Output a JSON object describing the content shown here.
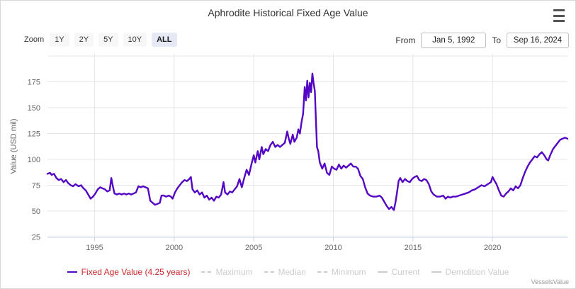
{
  "header": {
    "title": "Aphrodite Historical Fixed Age Value"
  },
  "controls": {
    "zoom_label": "Zoom",
    "zoom_options": [
      {
        "label": "1Y",
        "active": false
      },
      {
        "label": "2Y",
        "active": false
      },
      {
        "label": "5Y",
        "active": false
      },
      {
        "label": "10Y",
        "active": false
      },
      {
        "label": "ALL",
        "active": true
      }
    ],
    "from_label": "From",
    "from_value": "Jan 5, 1992",
    "to_label": "To",
    "to_value": "Sep 16, 2024"
  },
  "colors": {
    "line": "#5306c4",
    "grid": "#e6e6e6",
    "axis_line": "#ccd6eb",
    "tick_label": "#666666",
    "legend_active_text": "#cc2929",
    "legend_disabled": "#cccccc"
  },
  "chart_data": {
    "type": "line",
    "title": "Aphrodite Historical Fixed Age Value",
    "xlabel": "",
    "ylabel": "Value (USD mil)",
    "xlim": [
      1992.04,
      2024.71
    ],
    "ylim": [
      25,
      200
    ],
    "xticks": [
      1995,
      2000,
      2005,
      2010,
      2015,
      2020
    ],
    "yticks": [
      25,
      50,
      75,
      100,
      125,
      150,
      175
    ],
    "grid": true,
    "legend_position": "bottom",
    "series": [
      {
        "name": "Fixed Age Value (4.25 years)",
        "color": "#5306c4",
        "points": [
          [
            1992.04,
            86
          ],
          [
            1992.2,
            87
          ],
          [
            1992.3,
            85
          ],
          [
            1992.45,
            86
          ],
          [
            1992.6,
            82
          ],
          [
            1992.75,
            80
          ],
          [
            1992.9,
            81
          ],
          [
            1993.05,
            78
          ],
          [
            1993.2,
            80
          ],
          [
            1993.35,
            77
          ],
          [
            1993.5,
            75
          ],
          [
            1993.65,
            74
          ],
          [
            1993.8,
            76
          ],
          [
            1994.0,
            74
          ],
          [
            1994.15,
            75
          ],
          [
            1994.3,
            72
          ],
          [
            1994.45,
            70
          ],
          [
            1994.6,
            66
          ],
          [
            1994.75,
            62
          ],
          [
            1994.9,
            64
          ],
          [
            1995.05,
            67
          ],
          [
            1995.2,
            71
          ],
          [
            1995.35,
            73
          ],
          [
            1995.5,
            72
          ],
          [
            1995.65,
            71
          ],
          [
            1995.8,
            69
          ],
          [
            1995.95,
            70
          ],
          [
            1996.05,
            82
          ],
          [
            1996.15,
            74
          ],
          [
            1996.25,
            67
          ],
          [
            1996.4,
            66
          ],
          [
            1996.55,
            67
          ],
          [
            1996.7,
            66
          ],
          [
            1996.85,
            67
          ],
          [
            1997.0,
            66
          ],
          [
            1997.15,
            67
          ],
          [
            1997.3,
            66
          ],
          [
            1997.45,
            67
          ],
          [
            1997.6,
            68
          ],
          [
            1997.75,
            74
          ],
          [
            1997.9,
            73
          ],
          [
            1998.05,
            74
          ],
          [
            1998.2,
            73
          ],
          [
            1998.35,
            72
          ],
          [
            1998.5,
            60
          ],
          [
            1998.65,
            58
          ],
          [
            1998.8,
            56
          ],
          [
            1998.95,
            57
          ],
          [
            1999.1,
            58
          ],
          [
            1999.2,
            65
          ],
          [
            1999.35,
            65
          ],
          [
            1999.5,
            64
          ],
          [
            1999.65,
            65
          ],
          [
            1999.8,
            64
          ],
          [
            1999.9,
            62
          ],
          [
            2000.05,
            68
          ],
          [
            2000.2,
            72
          ],
          [
            2000.35,
            75
          ],
          [
            2000.5,
            78
          ],
          [
            2000.65,
            80
          ],
          [
            2000.8,
            79
          ],
          [
            2000.95,
            81
          ],
          [
            2001.05,
            83
          ],
          [
            2001.15,
            71
          ],
          [
            2001.3,
            68
          ],
          [
            2001.45,
            70
          ],
          [
            2001.6,
            66
          ],
          [
            2001.75,
            68
          ],
          [
            2001.9,
            63
          ],
          [
            2002.05,
            65
          ],
          [
            2002.2,
            61
          ],
          [
            2002.35,
            63
          ],
          [
            2002.5,
            60
          ],
          [
            2002.65,
            64
          ],
          [
            2002.8,
            63
          ],
          [
            2002.95,
            66
          ],
          [
            2003.1,
            78
          ],
          [
            2003.2,
            68
          ],
          [
            2003.35,
            66
          ],
          [
            2003.5,
            69
          ],
          [
            2003.65,
            68
          ],
          [
            2003.8,
            71
          ],
          [
            2003.95,
            74
          ],
          [
            2004.1,
            81
          ],
          [
            2004.25,
            73
          ],
          [
            2004.4,
            82
          ],
          [
            2004.55,
            90
          ],
          [
            2004.7,
            85
          ],
          [
            2004.85,
            95
          ],
          [
            2005.0,
            104
          ],
          [
            2005.1,
            97
          ],
          [
            2005.25,
            108
          ],
          [
            2005.35,
            100
          ],
          [
            2005.5,
            112
          ],
          [
            2005.6,
            105
          ],
          [
            2005.75,
            110
          ],
          [
            2005.9,
            108
          ],
          [
            2006.05,
            114
          ],
          [
            2006.2,
            117
          ],
          [
            2006.35,
            112
          ],
          [
            2006.5,
            114
          ],
          [
            2006.65,
            112
          ],
          [
            2006.8,
            114
          ],
          [
            2006.95,
            116
          ],
          [
            2007.1,
            127
          ],
          [
            2007.2,
            120
          ],
          [
            2007.3,
            115
          ],
          [
            2007.45,
            124
          ],
          [
            2007.55,
            117
          ],
          [
            2007.7,
            121
          ],
          [
            2007.8,
            129
          ],
          [
            2007.9,
            125
          ],
          [
            2008.0,
            136
          ],
          [
            2008.1,
            144
          ],
          [
            2008.2,
            170
          ],
          [
            2008.28,
            157
          ],
          [
            2008.36,
            176
          ],
          [
            2008.44,
            160
          ],
          [
            2008.52,
            174
          ],
          [
            2008.6,
            165
          ],
          [
            2008.68,
            183
          ],
          [
            2008.76,
            174
          ],
          [
            2008.84,
            166
          ],
          [
            2008.9,
            140
          ],
          [
            2008.97,
            112
          ],
          [
            2009.05,
            108
          ],
          [
            2009.15,
            97
          ],
          [
            2009.3,
            91
          ],
          [
            2009.45,
            96
          ],
          [
            2009.6,
            87
          ],
          [
            2009.75,
            85
          ],
          [
            2009.9,
            93
          ],
          [
            2010.05,
            91
          ],
          [
            2010.2,
            90
          ],
          [
            2010.35,
            95
          ],
          [
            2010.5,
            91
          ],
          [
            2010.65,
            94
          ],
          [
            2010.8,
            92
          ],
          [
            2010.95,
            94
          ],
          [
            2011.1,
            96
          ],
          [
            2011.25,
            93
          ],
          [
            2011.4,
            93
          ],
          [
            2011.55,
            91
          ],
          [
            2011.7,
            84
          ],
          [
            2011.85,
            81
          ],
          [
            2012.0,
            73
          ],
          [
            2012.15,
            67
          ],
          [
            2012.3,
            65
          ],
          [
            2012.5,
            64
          ],
          [
            2012.7,
            64
          ],
          [
            2012.9,
            65
          ],
          [
            2013.05,
            63
          ],
          [
            2013.2,
            59
          ],
          [
            2013.35,
            55
          ],
          [
            2013.5,
            52
          ],
          [
            2013.65,
            54
          ],
          [
            2013.8,
            51
          ],
          [
            2013.9,
            58
          ],
          [
            2014.0,
            68
          ],
          [
            2014.1,
            79
          ],
          [
            2014.2,
            82
          ],
          [
            2014.35,
            78
          ],
          [
            2014.5,
            81
          ],
          [
            2014.65,
            79
          ],
          [
            2014.8,
            78
          ],
          [
            2014.95,
            81
          ],
          [
            2015.1,
            83
          ],
          [
            2015.25,
            84
          ],
          [
            2015.4,
            80
          ],
          [
            2015.55,
            79
          ],
          [
            2015.7,
            81
          ],
          [
            2015.85,
            80
          ],
          [
            2016.0,
            76
          ],
          [
            2016.15,
            69
          ],
          [
            2016.3,
            66
          ],
          [
            2016.5,
            64
          ],
          [
            2016.7,
            64
          ],
          [
            2016.9,
            65
          ],
          [
            2017.05,
            62
          ],
          [
            2017.2,
            64
          ],
          [
            2017.35,
            63
          ],
          [
            2017.5,
            64
          ],
          [
            2017.7,
            64
          ],
          [
            2017.9,
            65
          ],
          [
            2018.1,
            66
          ],
          [
            2018.3,
            67
          ],
          [
            2018.5,
            68
          ],
          [
            2018.7,
            70
          ],
          [
            2018.9,
            71
          ],
          [
            2019.1,
            73
          ],
          [
            2019.3,
            75
          ],
          [
            2019.5,
            74
          ],
          [
            2019.7,
            76
          ],
          [
            2019.9,
            78
          ],
          [
            2020.0,
            83
          ],
          [
            2020.1,
            80
          ],
          [
            2020.25,
            76
          ],
          [
            2020.4,
            70
          ],
          [
            2020.55,
            65
          ],
          [
            2020.7,
            64
          ],
          [
            2020.85,
            67
          ],
          [
            2021.0,
            69
          ],
          [
            2021.15,
            72
          ],
          [
            2021.3,
            70
          ],
          [
            2021.45,
            74
          ],
          [
            2021.6,
            72
          ],
          [
            2021.75,
            75
          ],
          [
            2021.9,
            82
          ],
          [
            2022.05,
            88
          ],
          [
            2022.2,
            93
          ],
          [
            2022.35,
            97
          ],
          [
            2022.5,
            100
          ],
          [
            2022.65,
            103
          ],
          [
            2022.8,
            102
          ],
          [
            2022.95,
            105
          ],
          [
            2023.1,
            107
          ],
          [
            2023.25,
            104
          ],
          [
            2023.4,
            100
          ],
          [
            2023.5,
            99
          ],
          [
            2023.65,
            105
          ],
          [
            2023.8,
            110
          ],
          [
            2023.95,
            113
          ],
          [
            2024.1,
            116
          ],
          [
            2024.25,
            119
          ],
          [
            2024.4,
            120
          ],
          [
            2024.55,
            121
          ],
          [
            2024.71,
            120
          ]
        ]
      }
    ]
  },
  "legend": {
    "items": [
      {
        "label": "Fixed Age Value (4.25 years)",
        "marker_color": "#5306c4",
        "label_color": "#cc2929",
        "line_style": "solid",
        "enabled": true
      },
      {
        "label": "Maximum",
        "marker_color": "#cccccc",
        "label_color": "#cccccc",
        "line_style": "dashed",
        "enabled": false
      },
      {
        "label": "Median",
        "marker_color": "#cccccc",
        "label_color": "#cccccc",
        "line_style": "dashed",
        "enabled": false
      },
      {
        "label": "Minimum",
        "marker_color": "#cccccc",
        "label_color": "#cccccc",
        "line_style": "dashed",
        "enabled": false
      },
      {
        "label": "Current",
        "marker_color": "#cccccc",
        "label_color": "#cccccc",
        "line_style": "solid",
        "enabled": false
      },
      {
        "label": "Demolition Value",
        "marker_color": "#cccccc",
        "label_color": "#cccccc",
        "line_style": "solid",
        "enabled": false
      }
    ]
  },
  "footer": {
    "credit": "VesselsValue"
  }
}
